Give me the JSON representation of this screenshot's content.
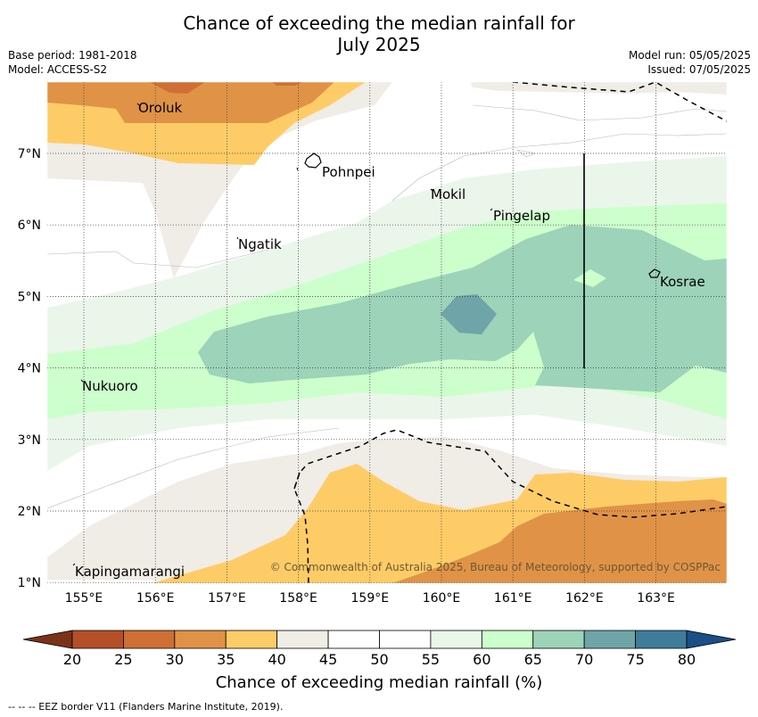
{
  "title_line1": "Chance of exceeding the median rainfall for",
  "title_line2": "July 2025",
  "meta": {
    "base_period": "Base period: 1981-2018",
    "model": "Model: ACCESS-S2",
    "model_run": "Model run: 05/05/2025",
    "issued": "Issued: 07/05/2025"
  },
  "map": {
    "lon_ticks": [
      "155°E",
      "156°E",
      "157°E",
      "158°E",
      "159°E",
      "160°E",
      "161°E",
      "162°E",
      "163°E"
    ],
    "lat_ticks": [
      "7°N",
      "6°N",
      "5°N",
      "4°N",
      "3°N",
      "2°N",
      "1°N"
    ],
    "places": [
      "Oroluk",
      "Pohnpei",
      "Mokil",
      "Pingelap",
      "Ngatik",
      "Kosrae",
      "Nukuoro",
      "Kapingamarangi"
    ],
    "copyright": "© Commonwealth of Australia 2025, Bureau of Meteorology, supported by COSPPac",
    "eez_line_style": "dashed"
  },
  "colorbar": {
    "ticks": [
      "20",
      "25",
      "30",
      "35",
      "40",
      "45",
      "50",
      "55",
      "60",
      "65",
      "70",
      "75",
      "80"
    ],
    "colors": [
      "#7a3319",
      "#b54f27",
      "#cf6f36",
      "#e09347",
      "#fecc67",
      "#f0ece6",
      "#ffffff",
      "#ffffff",
      "#eaf6ea",
      "#ccffcc",
      "#9dd3b9",
      "#6fa5a8",
      "#3f7c99",
      "#1a4f88"
    ],
    "label": "Chance of exceeding median rainfall (%)"
  },
  "footnote": "--  --  -- EEZ border V11 (Flanders Marine Institute, 2019)."
}
